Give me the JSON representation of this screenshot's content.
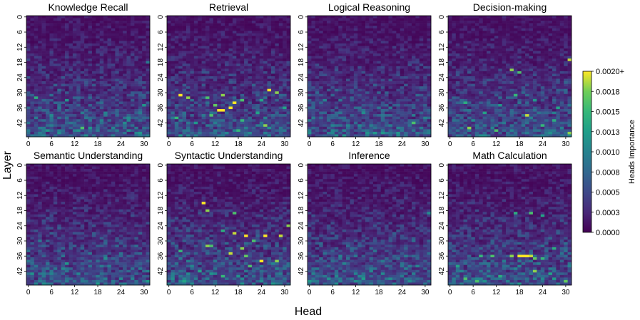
{
  "figure": {
    "xlabel": "Head",
    "ylabel": "Layer"
  },
  "colorbar": {
    "label": "Heads Importance",
    "ticks": [
      "0.0020+",
      "0.0018",
      "0.0015",
      "0.0013",
      "0.0010",
      "0.0008",
      "0.0005",
      "0.0003",
      "0.0000"
    ],
    "range": [
      0.0,
      0.002
    ],
    "colormap": "viridis"
  },
  "chart_data": [
    {
      "type": "heatmap",
      "title": "Knowledge Recall",
      "x_ticks": [
        "0",
        "6",
        "12",
        "18",
        "24",
        "30"
      ],
      "y_ticks": [
        "0",
        "6",
        "12",
        "18",
        "24",
        "30",
        "36",
        "42"
      ],
      "n_heads": 32,
      "n_layers": 48,
      "vmin": 0.0,
      "vmax": 0.002,
      "hotspots": [
        {
          "layer": 32,
          "head": 2,
          "value": 0.0014
        },
        {
          "layer": 33,
          "head": 10,
          "value": 0.0012
        },
        {
          "layer": 35,
          "head": 30,
          "value": 0.0012
        },
        {
          "layer": 38,
          "head": 20,
          "value": 0.001
        },
        {
          "layer": 44,
          "head": 14,
          "value": 0.0016
        },
        {
          "layer": 45,
          "head": 5,
          "value": 0.0012
        },
        {
          "layer": 40,
          "head": 26,
          "value": 0.0011
        },
        {
          "layer": 36,
          "head": 8,
          "value": 0.0009
        },
        {
          "layer": 18,
          "head": 31,
          "value": 0.0009
        }
      ]
    },
    {
      "type": "heatmap",
      "title": "Retrieval",
      "x_ticks": [
        "0",
        "6",
        "12",
        "18",
        "24",
        "30"
      ],
      "y_ticks": [
        "0",
        "6",
        "12",
        "18",
        "24",
        "30",
        "36",
        "42"
      ],
      "n_heads": 32,
      "n_layers": 48,
      "vmin": 0.0,
      "vmax": 0.002,
      "hotspots": [
        {
          "layer": 31,
          "head": 3,
          "value": 0.002
        },
        {
          "layer": 32,
          "head": 5,
          "value": 0.0018
        },
        {
          "layer": 32,
          "head": 10,
          "value": 0.0016
        },
        {
          "layer": 31,
          "head": 14,
          "value": 0.0018
        },
        {
          "layer": 29,
          "head": 26,
          "value": 0.002
        },
        {
          "layer": 30,
          "head": 28,
          "value": 0.0018
        },
        {
          "layer": 34,
          "head": 17,
          "value": 0.002
        },
        {
          "layer": 37,
          "head": 13,
          "value": 0.002
        },
        {
          "layer": 37,
          "head": 14,
          "value": 0.002
        },
        {
          "layer": 36,
          "head": 16,
          "value": 0.002
        },
        {
          "layer": 35,
          "head": 12,
          "value": 0.0017
        },
        {
          "layer": 33,
          "head": 19,
          "value": 0.0016
        },
        {
          "layer": 39,
          "head": 11,
          "value": 0.0016
        },
        {
          "layer": 40,
          "head": 2,
          "value": 0.0015
        },
        {
          "layer": 41,
          "head": 19,
          "value": 0.0015
        },
        {
          "layer": 43,
          "head": 25,
          "value": 0.0018
        },
        {
          "layer": 45,
          "head": 18,
          "value": 0.0015
        },
        {
          "layer": 36,
          "head": 30,
          "value": 0.0013
        },
        {
          "layer": 38,
          "head": 23,
          "value": 0.0013
        },
        {
          "layer": 42,
          "head": 7,
          "value": 0.0012
        },
        {
          "layer": 33,
          "head": 24,
          "value": 0.0013
        }
      ]
    },
    {
      "type": "heatmap",
      "title": "Logical Reasoning",
      "x_ticks": [
        "0",
        "6",
        "12",
        "18",
        "24",
        "30"
      ],
      "y_ticks": [
        "0",
        "6",
        "12",
        "18",
        "24",
        "30",
        "36",
        "42"
      ],
      "n_heads": 32,
      "n_layers": 48,
      "vmin": 0.0,
      "vmax": 0.002,
      "hotspots": [
        {
          "layer": 42,
          "head": 27,
          "value": 0.0016
        },
        {
          "layer": 38,
          "head": 14,
          "value": 0.0011
        },
        {
          "layer": 33,
          "head": 4,
          "value": 0.001
        },
        {
          "layer": 45,
          "head": 9,
          "value": 0.001
        },
        {
          "layer": 36,
          "head": 21,
          "value": 0.0009
        },
        {
          "layer": 40,
          "head": 30,
          "value": 0.001
        }
      ]
    },
    {
      "type": "heatmap",
      "title": "Decision-making",
      "x_ticks": [
        "0",
        "6",
        "12",
        "18",
        "24",
        "30"
      ],
      "y_ticks": [
        "0",
        "6",
        "12",
        "18",
        "24",
        "30",
        "36",
        "42"
      ],
      "n_heads": 32,
      "n_layers": 48,
      "vmin": 0.0,
      "vmax": 0.002,
      "hotspots": [
        {
          "layer": 17,
          "head": 31,
          "value": 0.0019
        },
        {
          "layer": 21,
          "head": 16,
          "value": 0.0018
        },
        {
          "layer": 22,
          "head": 18,
          "value": 0.0016
        },
        {
          "layer": 31,
          "head": 17,
          "value": 0.0015
        },
        {
          "layer": 34,
          "head": 4,
          "value": 0.0014
        },
        {
          "layer": 38,
          "head": 9,
          "value": 0.0013
        },
        {
          "layer": 36,
          "head": 28,
          "value": 0.0013
        },
        {
          "layer": 39,
          "head": 20,
          "value": 0.0019
        },
        {
          "layer": 44,
          "head": 5,
          "value": 0.0018
        },
        {
          "layer": 45,
          "head": 12,
          "value": 0.0016
        },
        {
          "layer": 43,
          "head": 24,
          "value": 0.0015
        },
        {
          "layer": 46,
          "head": 31,
          "value": 0.0018
        },
        {
          "layer": 33,
          "head": 22,
          "value": 0.0012
        },
        {
          "layer": 35,
          "head": 13,
          "value": 0.0012
        },
        {
          "layer": 41,
          "head": 27,
          "value": 0.0014
        }
      ]
    },
    {
      "type": "heatmap",
      "title": "Semantic Understanding",
      "x_ticks": [
        "0",
        "6",
        "12",
        "18",
        "24",
        "30"
      ],
      "y_ticks": [
        "0",
        "6",
        "12",
        "18",
        "24",
        "30",
        "36",
        "42"
      ],
      "n_heads": 32,
      "n_layers": 48,
      "vmin": 0.0,
      "vmax": 0.002,
      "hotspots": [
        {
          "layer": 39,
          "head": 10,
          "value": 0.0012
        },
        {
          "layer": 37,
          "head": 20,
          "value": 0.0011
        },
        {
          "layer": 43,
          "head": 6,
          "value": 0.001
        },
        {
          "layer": 30,
          "head": 3,
          "value": 0.0009
        },
        {
          "layer": 45,
          "head": 27,
          "value": 0.001
        },
        {
          "layer": 41,
          "head": 29,
          "value": 0.0009
        }
      ]
    },
    {
      "type": "heatmap",
      "title": "Syntactic Understanding",
      "x_ticks": [
        "0",
        "6",
        "12",
        "18",
        "24",
        "30"
      ],
      "y_ticks": [
        "0",
        "6",
        "12",
        "18",
        "24",
        "30",
        "36",
        "42"
      ],
      "n_heads": 32,
      "n_layers": 48,
      "vmin": 0.0,
      "vmax": 0.002,
      "hotspots": [
        {
          "layer": 15,
          "head": 9,
          "value": 0.002
        },
        {
          "layer": 18,
          "head": 10,
          "value": 0.0018
        },
        {
          "layer": 19,
          "head": 17,
          "value": 0.0016
        },
        {
          "layer": 24,
          "head": 31,
          "value": 0.0018
        },
        {
          "layer": 27,
          "head": 17,
          "value": 0.0019
        },
        {
          "layer": 28,
          "head": 20,
          "value": 0.002
        },
        {
          "layer": 28,
          "head": 25,
          "value": 0.002
        },
        {
          "layer": 28,
          "head": 29,
          "value": 0.0019
        },
        {
          "layer": 30,
          "head": 22,
          "value": 0.0016
        },
        {
          "layer": 32,
          "head": 10,
          "value": 0.0018
        },
        {
          "layer": 32,
          "head": 11,
          "value": 0.0016
        },
        {
          "layer": 33,
          "head": 19,
          "value": 0.0018
        },
        {
          "layer": 35,
          "head": 16,
          "value": 0.0019
        },
        {
          "layer": 36,
          "head": 20,
          "value": 0.0017
        },
        {
          "layer": 38,
          "head": 24,
          "value": 0.002
        },
        {
          "layer": 38,
          "head": 28,
          "value": 0.0018
        },
        {
          "layer": 40,
          "head": 21,
          "value": 0.0016
        },
        {
          "layer": 44,
          "head": 14,
          "value": 0.0015
        },
        {
          "layer": 34,
          "head": 3,
          "value": 0.0015
        },
        {
          "layer": 26,
          "head": 14,
          "value": 0.0014
        },
        {
          "layer": 42,
          "head": 8,
          "value": 0.0013
        },
        {
          "layer": 46,
          "head": 4,
          "value": 0.0013
        }
      ]
    },
    {
      "type": "heatmap",
      "title": "Inference",
      "x_ticks": [
        "0",
        "6",
        "12",
        "18",
        "24",
        "30"
      ],
      "y_ticks": [
        "0",
        "6",
        "12",
        "18",
        "24",
        "30",
        "36",
        "42"
      ],
      "n_heads": 32,
      "n_layers": 48,
      "vmin": 0.0,
      "vmax": 0.002,
      "hotspots": [
        {
          "layer": 19,
          "head": 31,
          "value": 0.0011
        },
        {
          "layer": 36,
          "head": 8,
          "value": 0.001
        },
        {
          "layer": 41,
          "head": 16,
          "value": 0.0009
        },
        {
          "layer": 44,
          "head": 24,
          "value": 0.0009
        },
        {
          "layer": 30,
          "head": 27,
          "value": 0.0008
        }
      ]
    },
    {
      "type": "heatmap",
      "title": "Math Calculation",
      "x_ticks": [
        "0",
        "6",
        "12",
        "18",
        "24",
        "30"
      ],
      "y_ticks": [
        "0",
        "6",
        "12",
        "18",
        "24",
        "30",
        "36",
        "42"
      ],
      "n_heads": 32,
      "n_layers": 48,
      "vmin": 0.0,
      "vmax": 0.002,
      "hotspots": [
        {
          "layer": 36,
          "head": 18,
          "value": 0.002
        },
        {
          "layer": 36,
          "head": 19,
          "value": 0.002
        },
        {
          "layer": 36,
          "head": 20,
          "value": 0.002
        },
        {
          "layer": 36,
          "head": 21,
          "value": 0.0019
        },
        {
          "layer": 36,
          "head": 16,
          "value": 0.0018
        },
        {
          "layer": 37,
          "head": 22,
          "value": 0.0017
        },
        {
          "layer": 36,
          "head": 11,
          "value": 0.0016
        },
        {
          "layer": 36,
          "head": 8,
          "value": 0.0015
        },
        {
          "layer": 37,
          "head": 24,
          "value": 0.0015
        },
        {
          "layer": 33,
          "head": 27,
          "value": 0.0014
        },
        {
          "layer": 19,
          "head": 21,
          "value": 0.0016
        },
        {
          "layer": 19,
          "head": 17,
          "value": 0.0014
        },
        {
          "layer": 20,
          "head": 24,
          "value": 0.0013
        },
        {
          "layer": 42,
          "head": 22,
          "value": 0.0018
        },
        {
          "layer": 45,
          "head": 4,
          "value": 0.0016
        },
        {
          "layer": 46,
          "head": 7,
          "value": 0.0016
        },
        {
          "layer": 46,
          "head": 30,
          "value": 0.0017
        },
        {
          "layer": 44,
          "head": 13,
          "value": 0.0014
        },
        {
          "layer": 40,
          "head": 2,
          "value": 0.0013
        },
        {
          "layer": 43,
          "head": 26,
          "value": 0.0013
        },
        {
          "layer": 47,
          "head": 18,
          "value": 0.0012
        }
      ]
    }
  ]
}
